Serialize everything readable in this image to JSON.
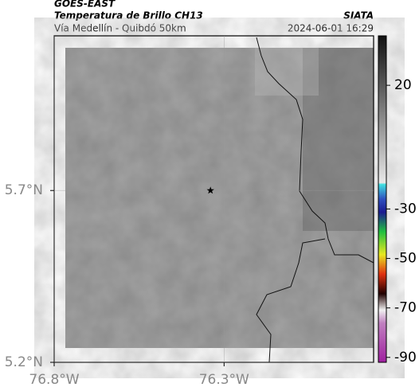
{
  "header": {
    "satellite": "GOES-EAST",
    "product": "Temperatura de Brillo CH13",
    "region": "Vía Medellín - Quibdó 50km",
    "source": "SIATA",
    "datetime": "2024-06-01 16:29"
  },
  "map": {
    "xlim": [
      -76.8,
      -75.86
    ],
    "ylim": [
      5.2,
      6.15
    ],
    "xticks": [
      {
        "value": -76.8,
        "label": "76.8°W"
      },
      {
        "value": -76.3,
        "label": "76.3°W"
      }
    ],
    "yticks": [
      {
        "value": 5.2,
        "label": "5.2°N"
      },
      {
        "value": 5.7,
        "label": "5.7°N"
      }
    ],
    "marker": {
      "lon": -76.34,
      "lat": 5.7
    }
  },
  "colorbar": {
    "lim": [
      -92,
      40
    ],
    "ticks": [
      20,
      -30,
      -50,
      -70,
      -90
    ]
  }
}
